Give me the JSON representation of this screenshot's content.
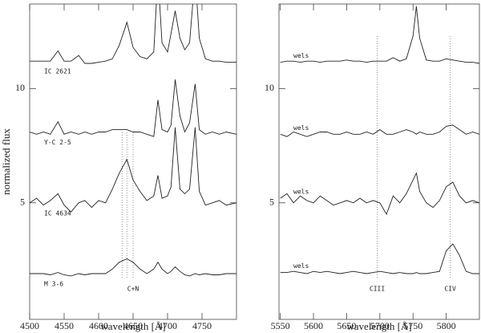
{
  "chart_data": [
    {
      "type": "line",
      "ylabel": "normalized flux",
      "xlabel": "wavelength [Å]",
      "xlim": [
        4500,
        4800
      ],
      "ylim": [
        -0.1,
        13.7
      ],
      "xticks": [
        4500,
        4550,
        4600,
        4650,
        4700,
        4750
      ],
      "yticks": [
        5,
        10
      ],
      "x": [
        4500,
        4510,
        4520,
        4530,
        4541,
        4550,
        4560,
        4571,
        4580,
        4590,
        4600,
        4610,
        4620,
        4630,
        4641,
        4650,
        4660,
        4670,
        4680,
        4686,
        4692,
        4700,
        4705,
        4711,
        4718,
        4725,
        4732,
        4740,
        4746,
        4755,
        4765,
        4775,
        4785,
        4800
      ],
      "series": [
        {
          "name": "IC 2621",
          "color": "#222222",
          "values": [
            11.2,
            11.2,
            11.2,
            11.2,
            11.65,
            11.2,
            11.2,
            11.45,
            11.1,
            11.1,
            11.15,
            11.2,
            11.3,
            11.9,
            12.9,
            11.8,
            11.4,
            11.3,
            11.6,
            15,
            12,
            11.6,
            12.4,
            13.4,
            12.2,
            11.7,
            12.0,
            15,
            12.2,
            11.3,
            11.2,
            11.2,
            11.15,
            11.15
          ]
        },
        {
          "name": "Y-C 2-5",
          "color": "#222222",
          "values": [
            8.1,
            8.0,
            8.1,
            8.0,
            8.55,
            8.0,
            8.1,
            8.0,
            8.1,
            8.0,
            8.1,
            8.1,
            8.2,
            8.2,
            8.2,
            8.1,
            8.1,
            8.0,
            7.9,
            9.5,
            8.2,
            8.1,
            8.4,
            10.4,
            8.8,
            8.1,
            8.5,
            10.2,
            8.2,
            8.0,
            8.1,
            8.0,
            8.1,
            8.0
          ]
        },
        {
          "name": "IC 4634",
          "color": "#222222",
          "values": [
            5.0,
            5.2,
            4.9,
            5.1,
            5.4,
            4.9,
            4.6,
            5.0,
            5.1,
            4.8,
            5.1,
            5.0,
            5.6,
            6.3,
            6.9,
            6.0,
            5.5,
            5.1,
            5.3,
            6.2,
            5.2,
            5.3,
            5.7,
            8.3,
            5.6,
            5.4,
            5.6,
            8.3,
            5.5,
            4.9,
            5.0,
            5.1,
            4.9,
            5.0
          ]
        },
        {
          "name": "M 3-6",
          "color": "#222222",
          "values": [
            1.9,
            1.9,
            1.9,
            1.85,
            1.95,
            1.85,
            1.8,
            1.9,
            1.85,
            1.9,
            1.9,
            1.9,
            2.1,
            2.4,
            2.55,
            2.4,
            2.1,
            1.9,
            2.1,
            2.4,
            2.1,
            1.9,
            2.0,
            2.2,
            2.0,
            1.85,
            1.8,
            1.9,
            1.85,
            1.9,
            1.85,
            1.85,
            1.9,
            1.9
          ]
        }
      ],
      "vlines": [
        4634,
        4641,
        4650
      ],
      "annotations": [
        {
          "text": "C+N",
          "x": 4650
        }
      ]
    },
    {
      "type": "line",
      "xlabel": "wavelength [Å]",
      "xlim": [
        5548,
        5850
      ],
      "ylim": [
        -0.1,
        13.7
      ],
      "xticks": [
        5550,
        5600,
        5650,
        5700,
        5750,
        5800
      ],
      "yticks": [
        5,
        10
      ],
      "x": [
        5550,
        5560,
        5570,
        5580,
        5590,
        5600,
        5610,
        5620,
        5630,
        5640,
        5650,
        5660,
        5670,
        5680,
        5690,
        5700,
        5710,
        5720,
        5730,
        5740,
        5750,
        5755,
        5760,
        5770,
        5780,
        5790,
        5800,
        5810,
        5820,
        5830,
        5840,
        5850
      ],
      "series": [
        {
          "name": "wels",
          "color": "#222222",
          "values": [
            11.15,
            11.2,
            11.2,
            11.15,
            11.2,
            11.2,
            11.15,
            11.2,
            11.2,
            11.2,
            11.25,
            11.2,
            11.2,
            11.15,
            11.2,
            11.2,
            11.2,
            11.35,
            11.2,
            11.3,
            12.3,
            13.6,
            12.2,
            11.25,
            11.2,
            11.2,
            11.3,
            11.25,
            11.2,
            11.15,
            11.15,
            11.1
          ]
        },
        {
          "name": "wels",
          "color": "#222222",
          "values": [
            8.0,
            7.9,
            8.1,
            8.0,
            7.9,
            8.0,
            8.1,
            8.1,
            8.0,
            8.0,
            8.1,
            8.0,
            8.0,
            8.1,
            8.0,
            8.2,
            8.0,
            8.0,
            8.1,
            8.2,
            8.1,
            8.0,
            8.1,
            8.0,
            8.0,
            8.1,
            8.35,
            8.4,
            8.2,
            8.0,
            8.1,
            8.0
          ]
        },
        {
          "name": "wels",
          "color": "#222222",
          "values": [
            5.2,
            5.4,
            5.0,
            5.3,
            5.1,
            5.0,
            5.3,
            5.1,
            4.9,
            5.0,
            5.1,
            5.0,
            5.2,
            5.0,
            5.1,
            5.0,
            4.5,
            5.3,
            5.0,
            5.4,
            6.0,
            6.3,
            5.5,
            5.0,
            4.8,
            5.1,
            5.7,
            5.9,
            5.3,
            5.0,
            5.1,
            5.0
          ]
        },
        {
          "name": "wels",
          "color": "#222222",
          "values": [
            1.95,
            1.95,
            2.0,
            1.95,
            1.9,
            2.0,
            1.95,
            2.0,
            1.95,
            1.9,
            1.95,
            2.0,
            1.95,
            1.9,
            1.95,
            2.0,
            1.95,
            1.9,
            1.95,
            1.9,
            1.9,
            1.95,
            1.9,
            1.9,
            1.95,
            2.0,
            2.9,
            3.2,
            2.7,
            2.0,
            1.9,
            1.9
          ]
        }
      ],
      "vlines": [
        5696,
        5806
      ],
      "annotations": [
        {
          "text": "CIII",
          "x": 5696
        },
        {
          "text": "CIV",
          "x": 5806
        }
      ]
    }
  ]
}
